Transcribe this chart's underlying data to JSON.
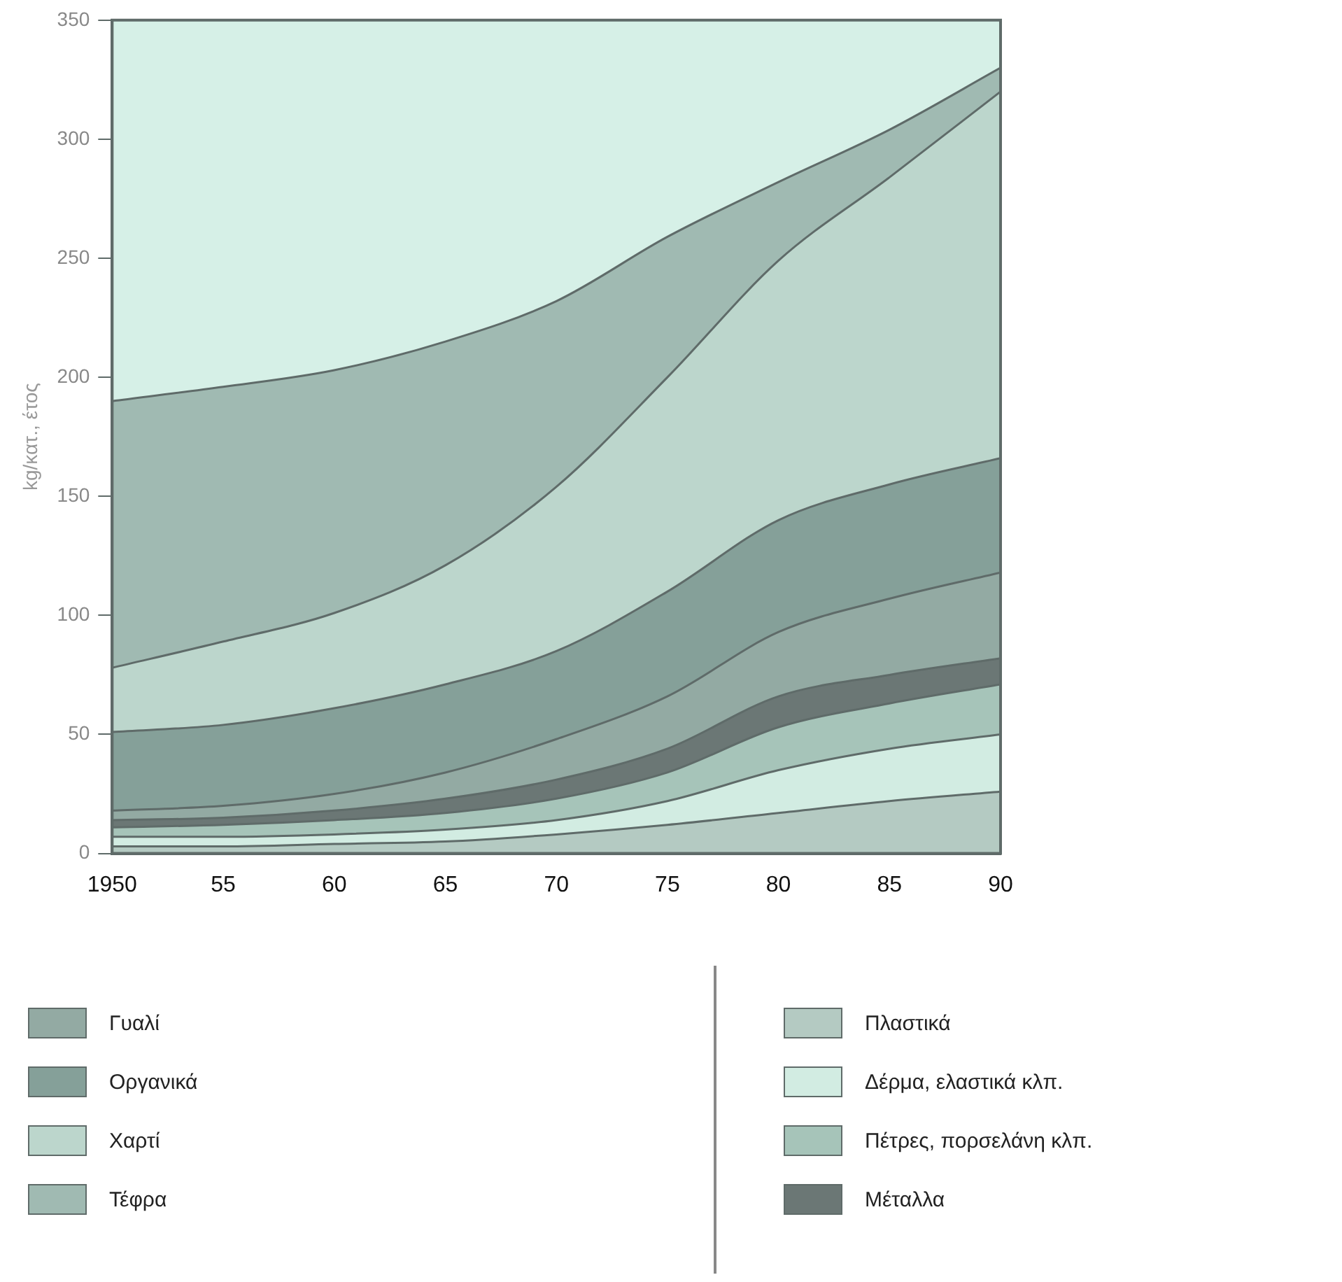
{
  "chart_data": {
    "type": "area",
    "stacked": true,
    "ylabel": "kg/κατ., έτος",
    "x": [
      1950,
      1955,
      1960,
      1965,
      1970,
      1975,
      1980,
      1985,
      1990
    ],
    "xlim": [
      1950,
      1990
    ],
    "xticks": [
      1950,
      {
        "value": 1955,
        "label": "55"
      },
      {
        "value": 1960,
        "label": "60"
      },
      {
        "value": 1965,
        "label": "65"
      },
      {
        "value": 1970,
        "label": "70"
      },
      {
        "value": 1975,
        "label": "75"
      },
      {
        "value": 1980,
        "label": "80"
      },
      {
        "value": 1985,
        "label": "85"
      },
      {
        "value": 1990,
        "label": "90"
      }
    ],
    "ylim": [
      0,
      350
    ],
    "yticks": [
      0,
      50,
      100,
      150,
      200,
      250,
      300,
      350
    ],
    "grid": false,
    "legend": "bottom",
    "series": [
      {
        "name": "Πλαστικά",
        "color": "#b4cac2",
        "values": [
          3,
          3,
          4,
          5,
          8,
          12,
          17,
          22,
          26
        ]
      },
      {
        "name": "Δέρμα, ελαστικά κλπ.",
        "color": "#d2ece2",
        "values": [
          4,
          4,
          4,
          5,
          6,
          10,
          18,
          22,
          24
        ]
      },
      {
        "name": "Πέτρες, πορσελάνη κλπ.",
        "color": "#a6c4b9",
        "values": [
          4,
          5,
          6,
          7,
          9,
          12,
          18,
          19,
          21
        ]
      },
      {
        "name": "Μέταλλα",
        "color": "#6b7775",
        "values": [
          3,
          3,
          4,
          6,
          8,
          10,
          13,
          12,
          11
        ]
      },
      {
        "name": "Γυαλί",
        "color": "#93aaa3",
        "values": [
          4,
          5,
          7,
          11,
          17,
          22,
          27,
          32,
          36
        ]
      },
      {
        "name": "Οργανικά",
        "color": "#85a099",
        "values": [
          33,
          34,
          36,
          37,
          37,
          44,
          47,
          48,
          48
        ]
      },
      {
        "name": "Χαρτί",
        "color": "#bcd6cc",
        "values": [
          27,
          35,
          40,
          50,
          69,
          90,
          109,
          129,
          154
        ]
      },
      {
        "name": "Τέφρα",
        "color": "#a0bab2",
        "values": [
          112,
          107,
          102,
          94,
          78,
          59,
          33,
          20,
          10
        ]
      }
    ]
  }
}
